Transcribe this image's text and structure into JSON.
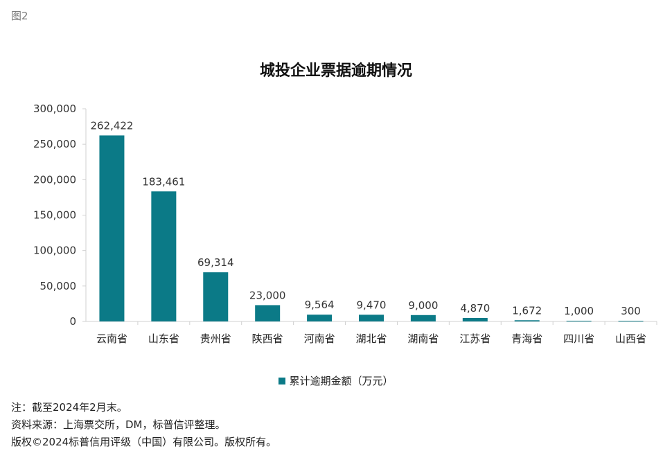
{
  "figure_label": "图2",
  "colors": {
    "bar": "#0b7a87",
    "axis": "#d0d0d0"
  },
  "chart_data": {
    "type": "bar",
    "title": "城投企业票据逾期情况",
    "xlabel": "",
    "ylabel": "",
    "categories": [
      "云南省",
      "山东省",
      "贵州省",
      "陕西省",
      "河南省",
      "湖北省",
      "湖南省",
      "江苏省",
      "青海省",
      "四川省",
      "山西省"
    ],
    "series": [
      {
        "name": "累计逾期金额（万元）",
        "values": [
          262422,
          183461,
          69314,
          23000,
          9564,
          9470,
          9000,
          4870,
          1672,
          1000,
          300
        ],
        "value_labels": [
          "262,422",
          "183,461",
          "69,314",
          "23,000",
          "9,564",
          "9,470",
          "9,000",
          "4,870",
          "1,672",
          "1,000",
          "300"
        ]
      }
    ],
    "ylim": [
      0,
      300000
    ],
    "yticks": [
      0,
      50000,
      100000,
      150000,
      200000,
      250000,
      300000
    ],
    "ytick_labels": [
      "0",
      "50,000",
      "100,000",
      "150,000",
      "200,000",
      "250,000",
      "300,000"
    ],
    "grid": false,
    "legend_position": "bottom-center"
  },
  "notes": [
    "注：截至2024年2月末。",
    "资料来源：上海票交所，DM，标普信评整理。",
    "版权©2024标普信用评级（中国）有限公司。版权所有。"
  ]
}
